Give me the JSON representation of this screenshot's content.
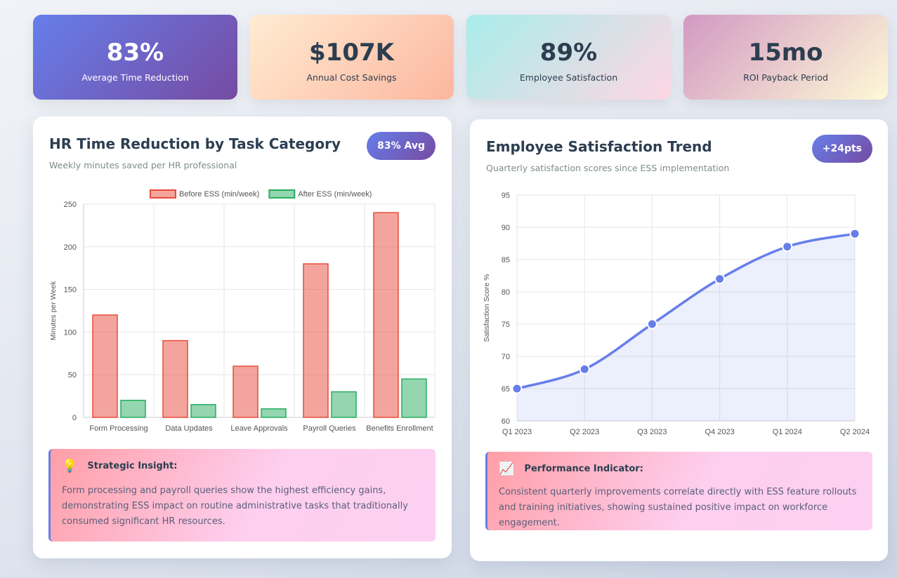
{
  "kpis": [
    {
      "value": "83%",
      "label": "Average Time Reduction"
    },
    {
      "value": "$107K",
      "label": "Annual Cost Savings"
    },
    {
      "value": "89%",
      "label": "Employee Satisfaction"
    },
    {
      "value": "15mo",
      "label": "ROI Payback Period"
    }
  ],
  "chart_data": [
    {
      "type": "bar",
      "title": "HR Time Reduction by Task Category",
      "subtitle": "Weekly minutes saved per HR professional",
      "badge": "83% Avg",
      "y_label": "Minutes per Week",
      "categories": [
        "Form Processing",
        "Data Updates",
        "Leave Approvals",
        "Payroll Queries",
        "Benefits Enrollment"
      ],
      "series": [
        {
          "name": "Before ESS (min/week)",
          "color": "#e74c3c",
          "values": [
            120,
            90,
            60,
            180,
            240
          ]
        },
        {
          "name": "After ESS (min/week)",
          "color": "#27ae60",
          "values": [
            20,
            15,
            10,
            30,
            45
          ]
        }
      ],
      "ylim": [
        0,
        250
      ],
      "yticks": [
        0,
        50,
        100,
        150,
        200,
        250
      ],
      "grid": true,
      "legend": "top"
    },
    {
      "type": "line",
      "title": "Employee Satisfaction Trend",
      "subtitle": "Quarterly satisfaction scores since ESS implementation",
      "badge": "+24pts",
      "y_label": "Satisfaction Score %",
      "categories": [
        "Q1 2023",
        "Q2 2023",
        "Q3 2023",
        "Q4 2023",
        "Q1 2024",
        "Q2 2024"
      ],
      "values": [
        65,
        68,
        75,
        82,
        87,
        89
      ],
      "color": "#667eea",
      "ylim": [
        60,
        95
      ],
      "yticks": [
        60,
        65,
        70,
        75,
        80,
        85,
        90,
        95
      ],
      "grid": true,
      "fill": true
    }
  ],
  "insights": [
    {
      "icon": "💡",
      "title": "Strategic Insight:",
      "text": "Form processing and payroll queries show the highest efficiency gains, demonstrating ESS impact on routine administrative tasks that traditionally consumed significant HR resources."
    },
    {
      "icon": "📈",
      "title": "Performance Indicator:",
      "text": "Consistent quarterly improvements correlate directly with ESS feature rollouts and training initiatives, showing sustained positive impact on workforce engagement."
    }
  ]
}
